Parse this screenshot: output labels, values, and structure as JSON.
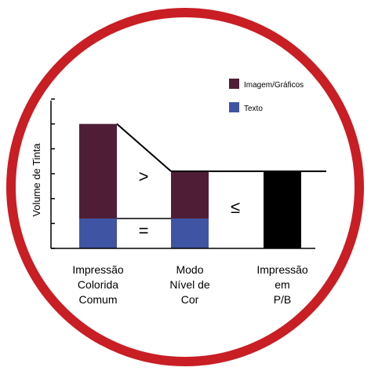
{
  "chart_data": {
    "type": "bar",
    "ylabel": "Volume de Tinta",
    "categories": [
      [
        "Impressão",
        "Colorida",
        "Comum"
      ],
      [
        "Modo",
        "Nível de",
        "Cor"
      ],
      [
        "Impressão",
        "em",
        "P/B"
      ]
    ],
    "series": [
      {
        "name": "Texto",
        "color": "#3f55a3",
        "values": [
          1.2,
          1.2,
          0
        ]
      },
      {
        "name": "Imagem/Gráficos",
        "color": "#4f1e36",
        "values": [
          3.8,
          1.9,
          0
        ]
      }
    ],
    "black_bar": {
      "color": "#000000",
      "values": [
        0,
        0,
        3.1
      ]
    },
    "ylim": [
      0,
      6
    ],
    "grid": false,
    "legend_position": "top-right",
    "annotations": [
      ">",
      "=",
      "≤"
    ],
    "colors": {
      "ring": "#c81e24",
      "axis": "#000000"
    }
  }
}
